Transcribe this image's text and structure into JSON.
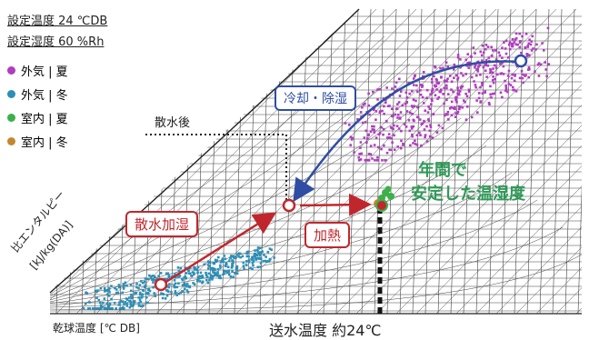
{
  "settings": {
    "temperature": "設定温度 24 ℃DB",
    "humidity": "設定湿度 60 %Rh"
  },
  "legend": [
    {
      "label": "外気 | 夏",
      "color": "#b03cc0"
    },
    {
      "label": "外気 | 冬",
      "color": "#2b8fb8"
    },
    {
      "label": "室内 | 夏",
      "color": "#3cb04a"
    },
    {
      "label": "室内 | 冬",
      "color": "#c7862d"
    }
  ],
  "labels": {
    "after_spray": "散水後",
    "cooling_dehumid": "冷却・除湿",
    "spray_humidify": "散水加湿",
    "heating": "加熱",
    "stable_line1": "年間で",
    "stable_line2": "安定した温湿度",
    "enthalpy_axis_line1": "比エンタルピー",
    "enthalpy_axis_line2": "[kJ/kg(DA)]",
    "dry_bulb_axis": "乾球温度 [℃ DB]",
    "supply_temp": "送水温度 約24℃"
  },
  "colors": {
    "summer_outdoor": "#b03cc0",
    "winter_outdoor": "#2b8fb8",
    "accent_blue": "#2f4ea3",
    "accent_red": "#c0272d",
    "accent_green": "#2e9a57"
  }
}
